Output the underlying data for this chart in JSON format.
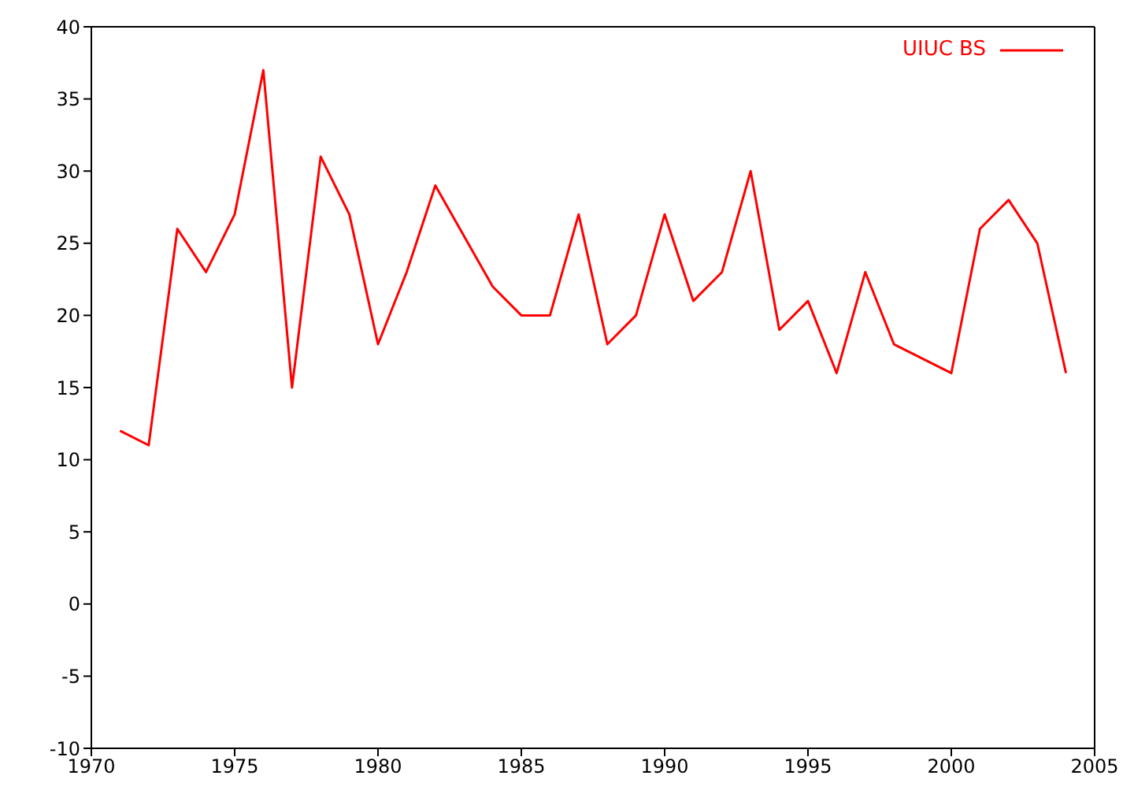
{
  "chart_data": {
    "type": "line",
    "x": [
      1971,
      1972,
      1973,
      1974,
      1975,
      1976,
      1977,
      1978,
      1979,
      1980,
      1981,
      1982,
      1984,
      1985,
      1986,
      1987,
      1988,
      1989,
      1990,
      1991,
      1992,
      1993,
      1994,
      1995,
      1996,
      1997,
      1998,
      2000,
      2001,
      2002,
      2003,
      2004
    ],
    "series": [
      {
        "name": "UIUC BS",
        "color": "#ff0000",
        "values": [
          12,
          11,
          26,
          23,
          27,
          37,
          15,
          31,
          27,
          18,
          23,
          29,
          22,
          20,
          20,
          27,
          18,
          20,
          27,
          21,
          23,
          30,
          19,
          21,
          16,
          23,
          18,
          16,
          26,
          28,
          25,
          16
        ]
      }
    ],
    "xlim": [
      1970,
      2005
    ],
    "xticks": [
      1970,
      1975,
      1980,
      1985,
      1990,
      1995,
      2000,
      2005
    ],
    "ylim": [
      -10,
      40
    ],
    "yticks": [
      -10,
      -5,
      0,
      5,
      10,
      15,
      20,
      25,
      30,
      35,
      40
    ],
    "grid": false,
    "legend": "top right",
    "marker": "none",
    "line_style": "solid"
  }
}
